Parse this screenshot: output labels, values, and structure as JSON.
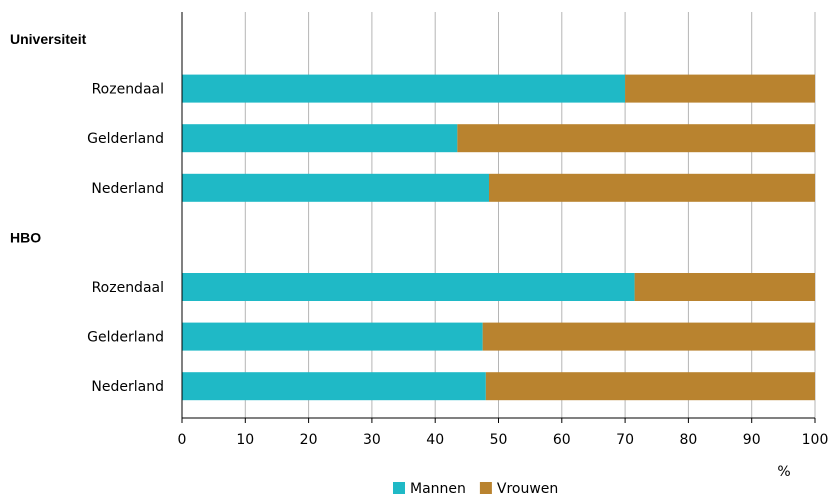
{
  "chart_data": {
    "type": "bar",
    "stacked": true,
    "orientation": "horizontal",
    "xlim": [
      0,
      100
    ],
    "xticks": [
      "0",
      "10",
      "20",
      "30",
      "40",
      "50",
      "60",
      "70",
      "80",
      "90",
      "100"
    ],
    "unit_label": "%",
    "grid": true,
    "legend_position": "bottom",
    "groups": [
      {
        "label": "Universiteit",
        "categories": [
          "Rozendaal",
          "Gelderland",
          "Nederland"
        ]
      },
      {
        "label": "HBO",
        "categories": [
          "Rozendaal",
          "Gelderland",
          "Nederland"
        ]
      }
    ],
    "series": [
      {
        "name": "Mannen",
        "color": "#1fb9c6",
        "values": [
          70,
          43.5,
          48.5,
          71.5,
          47.5,
          48
        ]
      },
      {
        "name": "Vrouwen",
        "color": "#b9832f",
        "values": [
          30,
          56.5,
          51.5,
          28.5,
          52.5,
          52
        ]
      }
    ]
  }
}
